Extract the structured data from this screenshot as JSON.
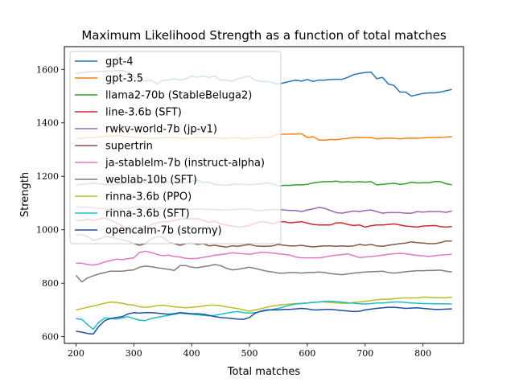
{
  "chart_data": {
    "type": "line",
    "title": "Maximum Likelihood Strength as a function of total matches",
    "xlabel": "Total matches",
    "ylabel": "Strength",
    "xlim": [
      180,
      870
    ],
    "ylim": [
      575,
      1685
    ],
    "xticks": [
      200,
      300,
      400,
      500,
      600,
      700,
      800
    ],
    "yticks": [
      600,
      800,
      1000,
      1200,
      1400,
      1600
    ],
    "grid": false,
    "legend_position": "top-left",
    "x": [
      200,
      210,
      220,
      230,
      240,
      250,
      260,
      270,
      280,
      290,
      300,
      310,
      320,
      330,
      340,
      350,
      360,
      370,
      380,
      390,
      400,
      410,
      420,
      430,
      440,
      450,
      460,
      470,
      480,
      490,
      500,
      510,
      520,
      530,
      540,
      550,
      560,
      570,
      580,
      590,
      600,
      610,
      620,
      630,
      640,
      650,
      660,
      670,
      680,
      690,
      700,
      710,
      720,
      730,
      740,
      750,
      760,
      770,
      780,
      790,
      800,
      810,
      820,
      830,
      840,
      850
    ],
    "series": [
      {
        "name": "gpt-4",
        "color": "#1f77b4",
        "values": [
          1585,
          1588,
          1590,
          1592,
          1592,
          1593,
          1594,
          1595,
          1596,
          1590,
          1570,
          1565,
          1555,
          1560,
          1545,
          1560,
          1560,
          1565,
          1560,
          1565,
          1575,
          1570,
          1575,
          1570,
          1575,
          1560,
          1560,
          1555,
          1565,
          1570,
          1575,
          1560,
          1555,
          1555,
          1550,
          1545,
          1550,
          1555,
          1560,
          1556,
          1562,
          1555,
          1560,
          1560,
          1562,
          1563,
          1563,
          1570,
          1580,
          1585,
          1588,
          1590,
          1565,
          1570,
          1545,
          1540,
          1515,
          1515,
          1500,
          1505,
          1510,
          1512,
          1512,
          1515,
          1520,
          1525
        ]
      },
      {
        "name": "gpt-3.5",
        "color": "#ff7f0e",
        "values": [
          1340,
          1343,
          1345,
          1345,
          1348,
          1350,
          1350,
          1352,
          1350,
          1348,
          1346,
          1345,
          1343,
          1343,
          1342,
          1344,
          1346,
          1345,
          1344,
          1342,
          1344,
          1346,
          1344,
          1345,
          1344,
          1343,
          1342,
          1345,
          1344,
          1340,
          1342,
          1344,
          1345,
          1344,
          1350,
          1358,
          1357,
          1358,
          1358,
          1359,
          1345,
          1348,
          1336,
          1335,
          1338,
          1337,
          1340,
          1342,
          1345,
          1346,
          1345,
          1345,
          1340,
          1342,
          1343,
          1342,
          1340,
          1342,
          1343,
          1342,
          1344,
          1345,
          1346,
          1346,
          1347,
          1348
        ]
      },
      {
        "name": "llama2-70b (StableBeluga2)",
        "color": "#2ca02c",
        "values": [
          1168,
          1170,
          1172,
          1175,
          1172,
          1170,
          1168,
          1170,
          1172,
          1176,
          1178,
          1180,
          1176,
          1180,
          1182,
          1180,
          1178,
          1176,
          1174,
          1176,
          1180,
          1185,
          1176,
          1178,
          1170,
          1168,
          1166,
          1170,
          1172,
          1170,
          1168,
          1170,
          1172,
          1176,
          1172,
          1164,
          1166,
          1166,
          1168,
          1168,
          1170,
          1175,
          1178,
          1180,
          1180,
          1182,
          1178,
          1180,
          1178,
          1180,
          1178,
          1180,
          1168,
          1170,
          1172,
          1174,
          1170,
          1172,
          1178,
          1175,
          1176,
          1176,
          1180,
          1180,
          1172,
          1168
        ]
      },
      {
        "name": "line-3.6b (SFT)",
        "color": "#d62728",
        "values": [
          1035,
          1035,
          1040,
          1035,
          1040,
          1045,
          1035,
          1025,
          1015,
          1000,
          990,
          1000,
          1005,
          1020,
          1025,
          1030,
          1030,
          1035,
          1040,
          1042,
          1040,
          1042,
          1035,
          1028,
          1032,
          1022,
          1018,
          1014,
          1010,
          1012,
          1016,
          1024,
          1030,
          1028,
          1022,
          1030,
          1030,
          1026,
          1028,
          1030,
          1025,
          1020,
          1018,
          1018,
          1018,
          1026,
          1026,
          1020,
          1016,
          1018,
          1010,
          1015,
          1018,
          1018,
          1020,
          1022,
          1018,
          1014,
          1012,
          1010,
          1014,
          1015,
          1016,
          1012,
          1010,
          1012
        ]
      },
      {
        "name": "rwkv-world-7b (jp-v1)",
        "color": "#9467bd",
        "values": [
          1086,
          1085,
          1084,
          1082,
          1080,
          1078,
          1076,
          1076,
          1078,
          1080,
          1084,
          1086,
          1082,
          1080,
          1082,
          1080,
          1080,
          1078,
          1078,
          1076,
          1076,
          1078,
          1078,
          1076,
          1076,
          1074,
          1074,
          1076,
          1076,
          1078,
          1078,
          1072,
          1072,
          1074,
          1076,
          1076,
          1074,
          1072,
          1072,
          1068,
          1074,
          1078,
          1084,
          1080,
          1072,
          1064,
          1062,
          1066,
          1070,
          1068,
          1072,
          1074,
          1068,
          1062,
          1064,
          1064,
          1064,
          1062,
          1062,
          1068,
          1066,
          1068,
          1068,
          1068,
          1065,
          1070
        ]
      },
      {
        "name": "supertrin",
        "color": "#8c564b",
        "values": [
          980,
          982,
          975,
          960,
          965,
          975,
          972,
          968,
          962,
          958,
          948,
          942,
          948,
          965,
          975,
          972,
          955,
          948,
          942,
          948,
          950,
          945,
          948,
          940,
          942,
          938,
          935,
          940,
          938,
          942,
          945,
          940,
          938,
          938,
          940,
          945,
          942,
          940,
          940,
          942,
          938,
          936,
          938,
          940,
          940,
          938,
          940,
          938,
          940,
          945,
          942,
          945,
          940,
          938,
          942,
          945,
          948,
          950,
          955,
          952,
          950,
          948,
          948,
          952,
          958,
          958
        ]
      },
      {
        "name": "ja-stablelm-7b (instruct-alpha)",
        "color": "#e377c2",
        "values": [
          875,
          875,
          870,
          868,
          872,
          880,
          885,
          890,
          888,
          892,
          895,
          915,
          920,
          915,
          908,
          903,
          905,
          900,
          898,
          893,
          892,
          893,
          897,
          900,
          905,
          907,
          910,
          914,
          912,
          910,
          908,
          912,
          916,
          915,
          913,
          910,
          908,
          905,
          898,
          895,
          895,
          895,
          895,
          898,
          902,
          905,
          907,
          910,
          903,
          896,
          898,
          900,
          902,
          905,
          908,
          910,
          912,
          910,
          907,
          904,
          902,
          900,
          903,
          905,
          907,
          908
        ]
      },
      {
        "name": "weblab-10b (SFT)",
        "color": "#7f7f7f",
        "values": [
          830,
          805,
          820,
          828,
          835,
          840,
          845,
          845,
          845,
          848,
          850,
          860,
          864,
          862,
          858,
          855,
          852,
          848,
          866,
          866,
          860,
          858,
          862,
          865,
          870,
          866,
          856,
          850,
          852,
          856,
          860,
          855,
          850,
          845,
          842,
          838,
          838,
          840,
          840,
          838,
          840,
          840,
          842,
          840,
          836,
          834,
          832,
          835,
          838,
          840,
          842,
          843,
          844,
          845,
          840,
          838,
          840,
          843,
          845,
          847,
          847,
          848,
          848,
          849,
          845,
          842
        ]
      },
      {
        "name": "rinna-3.6b (PPO)",
        "color": "#bcbd22",
        "values": [
          700,
          705,
          710,
          715,
          720,
          725,
          730,
          728,
          725,
          720,
          718,
          712,
          710,
          712,
          716,
          718,
          715,
          712,
          710,
          708,
          710,
          712,
          715,
          718,
          718,
          716,
          712,
          708,
          705,
          700,
          695,
          700,
          705,
          710,
          715,
          718,
          720,
          722,
          724,
          725,
          726,
          728,
          730,
          730,
          728,
          726,
          725,
          725,
          728,
          730,
          732,
          735,
          738,
          740,
          740,
          742,
          744,
          745,
          745,
          745,
          748,
          748,
          746,
          746,
          746,
          748
        ]
      },
      {
        "name": "rinna-3.6b (SFT)",
        "color": "#17becf",
        "values": [
          668,
          665,
          645,
          628,
          655,
          670,
          668,
          666,
          670,
          675,
          668,
          662,
          660,
          668,
          672,
          676,
          680,
          684,
          688,
          686,
          684,
          682,
          680,
          678,
          680,
          684,
          688,
          692,
          694,
          690,
          688,
          690,
          694,
          698,
          702,
          706,
          712,
          718,
          722,
          724,
          726,
          728,
          730,
          732,
          733,
          731,
          729,
          727,
          725,
          723,
          722,
          724,
          726,
          726,
          728,
          730,
          730,
          728,
          726,
          725,
          724,
          724,
          723,
          723,
          723,
          722
        ]
      },
      {
        "name": "opencalm-7b (stormy)",
        "color": "#1f4fa0",
        "values": [
          620,
          617,
          612,
          610,
          640,
          660,
          668,
          672,
          675,
          685,
          690,
          688,
          690,
          690,
          688,
          686,
          684,
          686,
          690,
          688,
          686,
          686,
          684,
          680,
          675,
          672,
          670,
          668,
          666,
          665,
          672,
          688,
          696,
          700,
          700,
          700,
          702,
          702,
          704,
          706,
          704,
          700,
          700,
          702,
          702,
          700,
          698,
          696,
          694,
          695,
          700,
          703,
          706,
          708,
          710,
          710,
          708,
          706,
          707,
          708,
          706,
          704,
          702,
          702,
          703,
          704
        ]
      }
    ]
  }
}
